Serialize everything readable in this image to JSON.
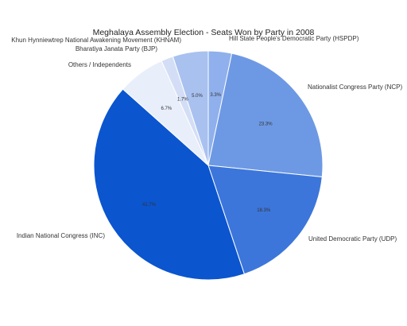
{
  "chart_data": {
    "type": "pie",
    "title": "Meghalaya Assembly Election - Seats Won by Party in 2008",
    "slices": [
      {
        "label": "Hill State People's Democratic Party (HSPDP)",
        "value": 3.3,
        "value_label": "3.3%",
        "color": "#8fb0ec"
      },
      {
        "label": "Nationalist Congress Party (NCP)",
        "value": 23.3,
        "value_label": "23.3%",
        "color": "#6d99e4"
      },
      {
        "label": "United Democratic Party (UDP)",
        "value": 18.3,
        "value_label": "18.3%",
        "color": "#3c76da"
      },
      {
        "label": "Indian National Congress (INC)",
        "value": 41.7,
        "value_label": "41.7%",
        "color": "#0b55cf"
      },
      {
        "label": "Others / Independents",
        "value": 6.7,
        "value_label": "6.7%",
        "color": "#e8eefa"
      },
      {
        "label": "Bharatiya Janata Party (BJP)",
        "value": 1.7,
        "value_label": "1.7%",
        "color": "#d3def6"
      },
      {
        "label": "Khun Hynniewtrep National Awakening Movement (KHNAM)",
        "value": 5.0,
        "value_label": "5.0%",
        "color": "#a9c1ef"
      }
    ],
    "start_angle_deg": 0,
    "direction": "clockwise",
    "legend": "none"
  }
}
